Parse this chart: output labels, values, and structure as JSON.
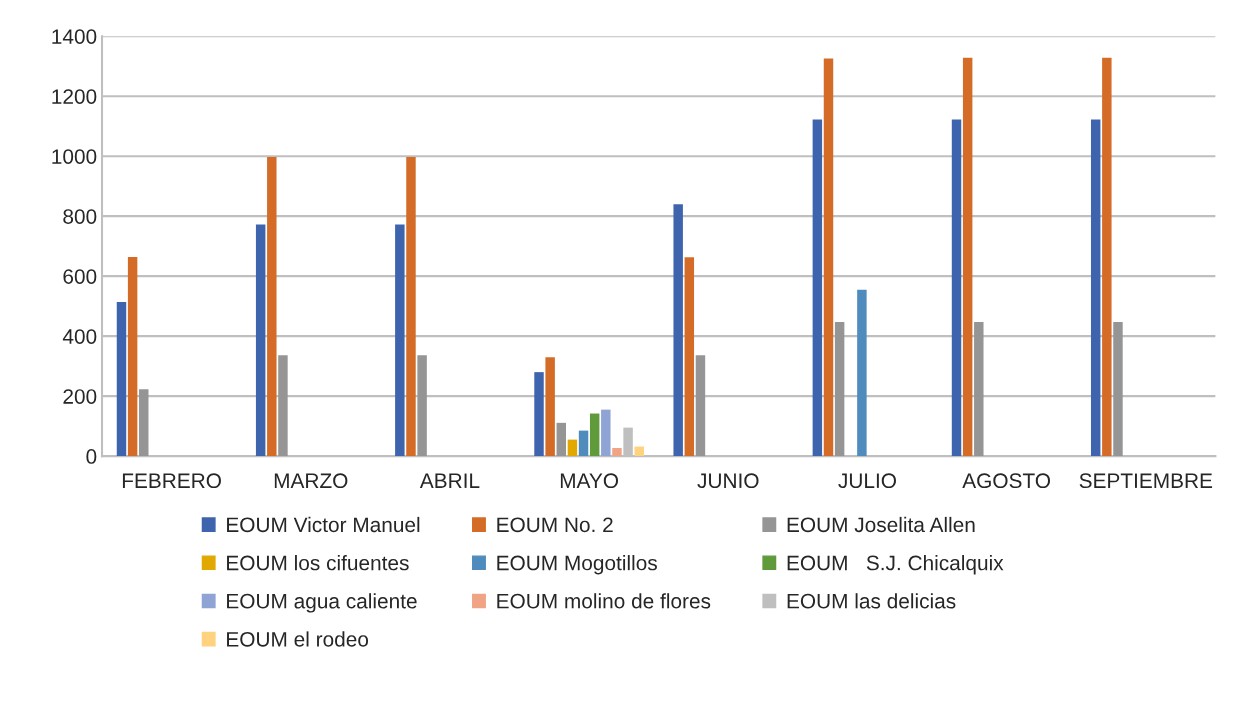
{
  "chart_data": {
    "type": "bar",
    "categories": [
      "FEBRERO",
      "MARZO",
      "ABRIL",
      "MAYO",
      "JUNIO",
      "JULIO",
      "AGOSTO",
      "SEPTIEMBRE"
    ],
    "series": [
      {
        "name": "EOUM Victor Manuel",
        "color": "#3e64ad",
        "values": [
          514,
          772,
          772,
          280,
          840,
          1122,
          1122,
          1122
        ]
      },
      {
        "name": "EOUM No. 2",
        "color": "#d46c28",
        "values": [
          664,
          997,
          997,
          330,
          663,
          1326,
          1328,
          1328
        ]
      },
      {
        "name": "EOUM Joselita Allen",
        "color": "#959595",
        "values": [
          223,
          336,
          336,
          111,
          336,
          447,
          447,
          447
        ]
      },
      {
        "name": "EOUM los cifuentes",
        "color": "#e1a800",
        "values": [
          null,
          null,
          null,
          55,
          null,
          null,
          null,
          null
        ]
      },
      {
        "name": "EOUM Mogotillos",
        "color": "#4f8bbd",
        "values": [
          null,
          null,
          null,
          85,
          null,
          555,
          null,
          null
        ]
      },
      {
        "name": "EOUM   S.J. Chicalquix",
        "color": "#5f9a3b",
        "values": [
          null,
          null,
          null,
          142,
          null,
          null,
          null,
          null
        ]
      },
      {
        "name": "EOUM agua caliente",
        "color": "#8fa3d5",
        "values": [
          null,
          null,
          null,
          155,
          null,
          null,
          null,
          null
        ]
      },
      {
        "name": "EOUM molino de flores",
        "color": "#f1a485",
        "values": [
          null,
          null,
          null,
          27,
          null,
          null,
          null,
          null
        ]
      },
      {
        "name": "EOUM las delicias",
        "color": "#bfbfbf",
        "values": [
          null,
          null,
          null,
          95,
          null,
          null,
          null,
          null
        ]
      },
      {
        "name": "EOUM el rodeo",
        "color": "#fed27f",
        "values": [
          null,
          null,
          null,
          32,
          null,
          null,
          null,
          null
        ]
      }
    ],
    "ylim": [
      0,
      1400
    ],
    "yticks": [
      0,
      200,
      400,
      600,
      800,
      1000,
      1200,
      1400
    ],
    "grid": "y",
    "legend": "bottom"
  }
}
